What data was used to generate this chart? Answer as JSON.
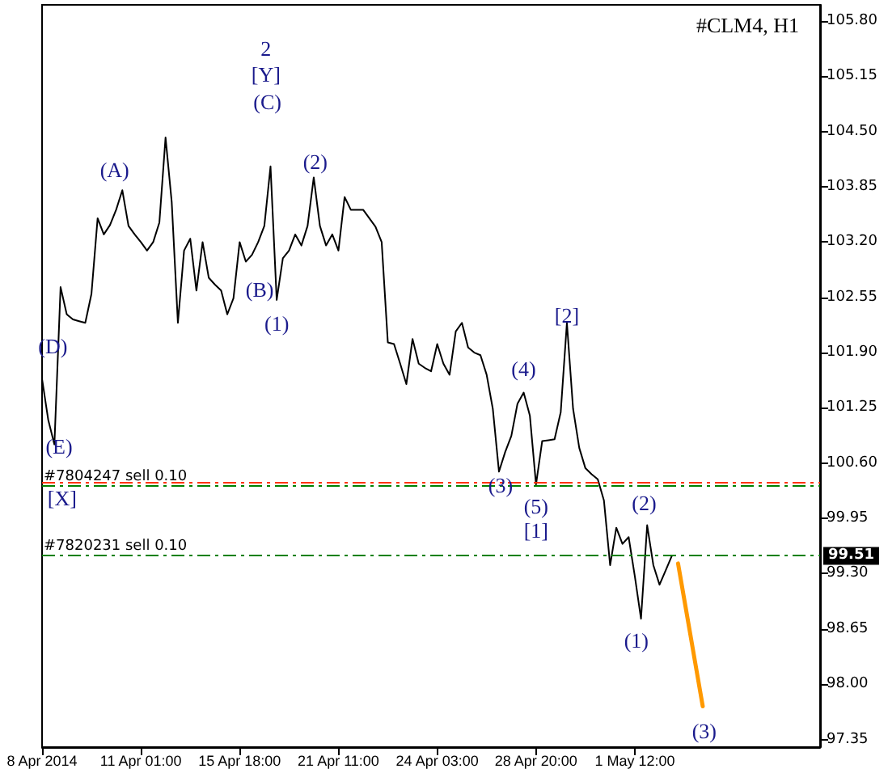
{
  "chart_data": {
    "type": "line",
    "title": "#CLM4, H1",
    "categories": [
      "8 Apr 2014",
      null,
      null,
      null,
      null,
      null,
      null,
      null,
      null,
      null,
      null,
      null,
      null,
      null,
      null,
      null,
      "11 Apr 01:00",
      null,
      null,
      null,
      null,
      null,
      null,
      null,
      null,
      null,
      null,
      null,
      null,
      null,
      null,
      null,
      "15 Apr 18:00",
      null,
      null,
      null,
      null,
      null,
      null,
      null,
      null,
      null,
      null,
      null,
      null,
      null,
      null,
      null,
      "21 Apr 11:00",
      null,
      null,
      null,
      null,
      null,
      null,
      null,
      null,
      null,
      null,
      null,
      null,
      null,
      null,
      null,
      "24 Apr 03:00",
      null,
      null,
      null,
      null,
      null,
      null,
      null,
      null,
      null,
      null,
      null,
      null,
      null,
      null,
      null,
      "28 Apr 20:00",
      null,
      null,
      null,
      null,
      null,
      null,
      null,
      null,
      null,
      null,
      null,
      null,
      null,
      null,
      null,
      "1 May 12:00",
      null,
      null,
      null,
      null,
      null,
      null,
      null,
      null,
      null,
      null,
      null,
      null,
      null,
      null,
      null,
      null,
      null,
      null,
      null,
      null,
      null,
      null,
      null,
      null,
      null,
      null,
      null,
      null,
      null,
      null
    ],
    "series": [
      {
        "color": "#000000",
        "values": [
          101.59,
          101.11,
          100.82,
          102.67,
          102.35,
          102.29,
          102.27,
          102.25,
          102.59,
          103.48,
          103.29,
          103.4,
          103.58,
          103.81,
          103.39,
          103.29,
          103.2,
          103.1,
          103.2,
          103.43,
          104.43,
          103.67,
          102.25,
          103.1,
          103.24,
          102.63,
          103.2,
          102.78,
          102.7,
          102.63,
          102.35,
          102.54,
          103.2,
          102.97,
          103.05,
          103.2,
          103.39,
          104.09,
          102.52,
          103.01,
          103.1,
          103.29,
          103.16,
          103.39,
          103.96,
          103.39,
          103.16,
          103.29,
          103.1,
          103.73,
          103.58,
          103.58,
          103.58,
          103.48,
          103.38,
          103.2,
          102.02,
          102.0,
          101.77,
          101.53,
          102.06,
          101.77,
          101.72,
          101.68,
          102.0,
          101.77,
          101.64,
          102.15,
          102.25,
          101.96,
          101.9,
          101.87,
          101.64,
          101.24,
          100.5,
          100.73,
          100.92,
          101.3,
          101.43,
          101.16,
          100.35,
          100.86,
          100.87,
          100.88,
          101.2,
          102.25,
          101.24,
          100.78,
          100.54,
          100.47,
          100.41,
          100.16,
          99.4,
          99.84,
          99.65,
          99.73,
          99.27,
          98.77,
          99.87,
          99.4,
          99.17,
          99.34,
          99.51,
          null,
          null,
          null,
          null,
          null,
          null,
          null,
          null,
          null,
          null,
          null,
          null,
          null,
          null,
          null,
          null,
          null,
          null,
          null,
          null,
          null,
          null,
          null,
          null
        ]
      },
      {
        "color": "#ff9900",
        "values": [
          null,
          null,
          null,
          null,
          null,
          null,
          null,
          null,
          null,
          null,
          null,
          null,
          null,
          null,
          null,
          null,
          null,
          null,
          null,
          null,
          null,
          null,
          null,
          null,
          null,
          null,
          null,
          null,
          null,
          null,
          null,
          null,
          null,
          null,
          null,
          null,
          null,
          null,
          null,
          null,
          null,
          null,
          null,
          null,
          null,
          null,
          null,
          null,
          null,
          null,
          null,
          null,
          null,
          null,
          null,
          null,
          null,
          null,
          null,
          null,
          null,
          null,
          null,
          null,
          null,
          null,
          null,
          null,
          null,
          null,
          null,
          null,
          null,
          null,
          null,
          null,
          null,
          null,
          null,
          null,
          null,
          null,
          null,
          null,
          null,
          null,
          null,
          null,
          null,
          null,
          null,
          null,
          null,
          null,
          null,
          null,
          null,
          null,
          null,
          null,
          null,
          null,
          null,
          99.42,
          99.0,
          98.58,
          98.16,
          97.74,
          null,
          null,
          null,
          null,
          null,
          null,
          null,
          null,
          null,
          null,
          null,
          null,
          null,
          null,
          null,
          null,
          null,
          null,
          null
        ]
      }
    ],
    "ylim": [
      97.26,
      105.99
    ],
    "yticks": [
      {
        "value": 97.35,
        "label": "97.35"
      },
      {
        "value": 98,
        "label": "98.00"
      },
      {
        "value": 98.65,
        "label": "98.65"
      },
      {
        "value": 99.3,
        "label": "99.30"
      },
      {
        "value": 99.95,
        "label": "99.95"
      },
      {
        "value": 100.6,
        "label": "100.60"
      },
      {
        "value": 101.25,
        "label": "101.25"
      },
      {
        "value": 101.9,
        "label": "101.90"
      },
      {
        "value": 102.55,
        "label": "102.55"
      },
      {
        "value": 103.2,
        "label": "103.20"
      },
      {
        "value": 103.85,
        "label": "103.85"
      },
      {
        "value": 104.5,
        "label": "104.50"
      },
      {
        "value": 105.15,
        "label": "105.15"
      },
      {
        "value": 105.8,
        "label": "105.80"
      }
    ],
    "ref_lines": [
      {
        "axis": "y",
        "value": 100.37,
        "color": "#ff3300",
        "line_style": "dashed"
      },
      {
        "axis": "y",
        "value": 100.33,
        "label": "#7804247 sell 0.10",
        "color": "#008000",
        "line_style": "dashed"
      },
      {
        "axis": "y",
        "value": 99.51,
        "label": "#7820231 sell 0.10",
        "color": "#008000",
        "line_style": "dashed"
      }
    ],
    "annotations": [
      "(D)",
      "(E)",
      "[X]",
      "(A)",
      "2",
      "[Y]",
      "(C)",
      "(B)",
      "(1)",
      "(2)",
      "(4)",
      "(3)",
      "(5)",
      "[1]",
      "[2]",
      "(2)",
      "(1)",
      "(3)",
      {
        "text": "99.51",
        "y": 99.51
      }
    ],
    "grid": false,
    "marker": "none",
    "line_style": "solid"
  }
}
